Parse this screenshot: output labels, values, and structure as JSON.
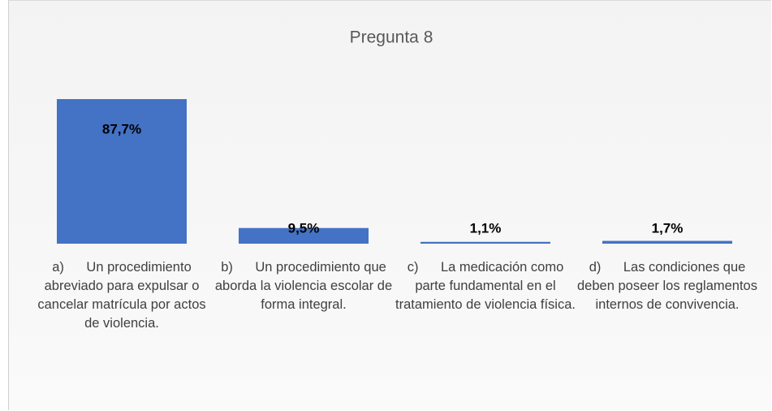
{
  "chart_data": {
    "type": "bar",
    "title": "Pregunta 8",
    "categories": [
      "a)      Un procedimiento abreviado para expulsar o cancelar matrícula por actos de violencia.",
      "b)      Un procedimiento que aborda la violencia escolar de forma integral.",
      "c)      La medicación como parte fundamental en el tratamiento de violencia física.",
      "d)      Las condiciones que deben poseer los reglamentos internos de convivencia."
    ],
    "values": [
      87.7,
      9.5,
      1.1,
      1.7
    ],
    "value_labels": [
      "87,7%",
      "9,5%",
      "1,1%",
      "1,7%"
    ],
    "color": "#4472c4"
  }
}
